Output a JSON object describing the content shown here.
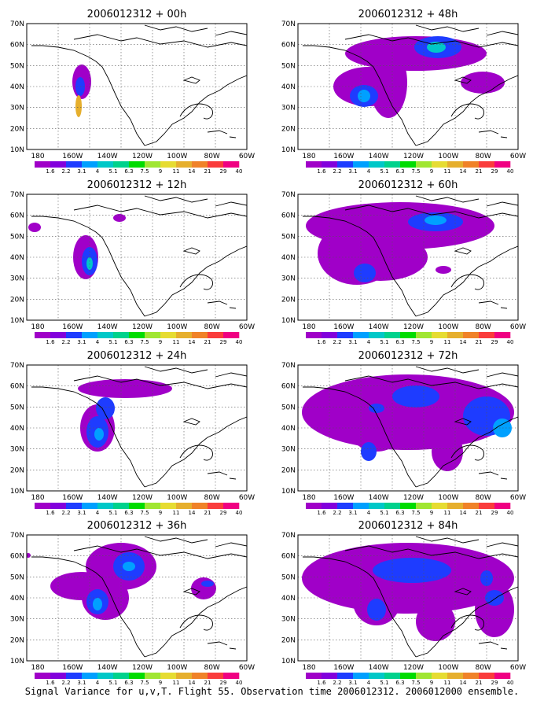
{
  "caption": "Signal Variance for u,v,T. Flight 55. Observation time 2006012312. 2006012000 ensemble.",
  "lat_labels": [
    "10N",
    "20N",
    "30N",
    "40N",
    "50N",
    "60N",
    "70N"
  ],
  "lon_labels": [
    "180",
    "160W",
    "140W",
    "120W",
    "100W",
    "80W",
    "60W"
  ],
  "colorbar": {
    "labels": [
      "1.6",
      "2.2",
      "3.1",
      "4",
      "5.1",
      "6.3",
      "7.5",
      "9",
      "11",
      "14",
      "21",
      "29",
      "40"
    ],
    "colors": [
      "#a000c8",
      "#8200dc",
      "#1e3cff",
      "#00a0ff",
      "#00c8c8",
      "#00d28c",
      "#00dc00",
      "#a0e632",
      "#e6dc32",
      "#e6af2d",
      "#f08228",
      "#fa3c3c",
      "#f00082"
    ]
  },
  "panels": [
    {
      "title": "2006012312 + 00h"
    },
    {
      "title": "2006012312 + 48h"
    },
    {
      "title": "2006012312 + 12h"
    },
    {
      "title": "2006012312 + 60h"
    },
    {
      "title": "2006012312 + 24h"
    },
    {
      "title": "2006012312 + 72h"
    },
    {
      "title": "2006012312 + 36h"
    },
    {
      "title": "2006012312 + 84h"
    }
  ]
}
